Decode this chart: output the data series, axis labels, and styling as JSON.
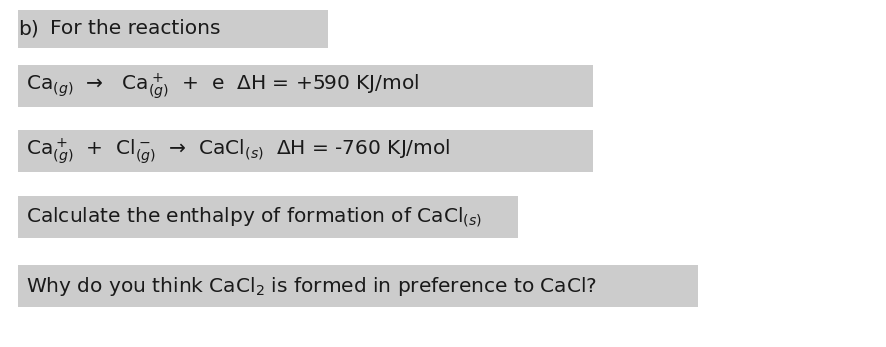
{
  "background_color": "#ffffff",
  "box_color": "#cccccc",
  "text_color": "#1a1a1a",
  "line0_b": "b)",
  "line0_text": "For the reactions",
  "line1_text": "Ca$_{(g)}$  →   Ca$^+_{(g)}$  +  e  ΔH = +590 KJ/mol",
  "line2_text": "Ca$^+_{(g)}$  +  Cl$^-_{(g)}$  →  CaCl$_{(s)}$  ΔH = -760 KJ/mol",
  "line3_text": "Calculate the enthalpy of formation of CaCl$_{(s)}$",
  "line4_text": "Why do you think CaCl$_2$ is formed in preference to CaCl?",
  "fig_width": 8.87,
  "fig_height": 3.47,
  "dpi": 100,
  "fontsize": 14.5
}
